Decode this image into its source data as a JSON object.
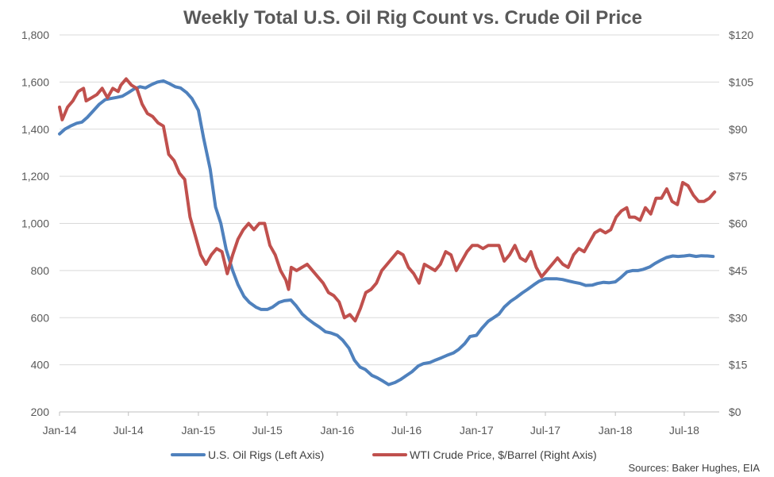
{
  "chart_data": {
    "type": "line",
    "title": "Weekly Total U.S. Oil Rig Count vs. Crude Oil Price",
    "source": "Sources: Baker Hughes, EIA",
    "x_tick_labels": [
      "Jan-14",
      "Jul-14",
      "Jan-15",
      "Jul-15",
      "Jan-16",
      "Jul-16",
      "Jan-17",
      "Jul-17",
      "Jan-18",
      "Jul-18"
    ],
    "x_tick_dates": [
      "2014-01-01",
      "2014-07-01",
      "2015-01-01",
      "2015-07-01",
      "2016-01-01",
      "2016-07-01",
      "2017-01-01",
      "2017-07-01",
      "2018-01-01",
      "2018-07-01"
    ],
    "xlim": [
      "2014-01-01",
      "2018-10-01"
    ],
    "left_axis": {
      "ylim": [
        200,
        1800
      ],
      "ticks": [
        "200",
        "400",
        "600",
        "800",
        "1,000",
        "1,200",
        "1,400",
        "1,600",
        "1,800"
      ],
      "tick_values": [
        200,
        400,
        600,
        800,
        1000,
        1200,
        1400,
        1600,
        1800
      ]
    },
    "right_axis": {
      "ylim": [
        0,
        120
      ],
      "ticks": [
        "$0",
        "$15",
        "$30",
        "$45",
        "$60",
        "$75",
        "$90",
        "$105",
        "$120"
      ],
      "tick_values": [
        0,
        15,
        30,
        45,
        60,
        75,
        90,
        105,
        120
      ]
    },
    "legend_position": "bottom",
    "gridlines": "horizontal",
    "series": [
      {
        "name": "U.S. Oil Rigs (Left Axis)",
        "axis": "left",
        "color": "#4F81BD",
        "points": [
          [
            "2014-01-01",
            1380
          ],
          [
            "2014-01-15",
            1400
          ],
          [
            "2014-02-01",
            1415
          ],
          [
            "2014-02-15",
            1425
          ],
          [
            "2014-03-01",
            1430
          ],
          [
            "2014-03-15",
            1450
          ],
          [
            "2014-04-01",
            1480
          ],
          [
            "2014-04-15",
            1505
          ],
          [
            "2014-05-01",
            1525
          ],
          [
            "2014-05-15",
            1530
          ],
          [
            "2014-06-01",
            1535
          ],
          [
            "2014-06-15",
            1540
          ],
          [
            "2014-07-01",
            1555
          ],
          [
            "2014-07-15",
            1570
          ],
          [
            "2014-08-01",
            1580
          ],
          [
            "2014-08-15",
            1575
          ],
          [
            "2014-09-01",
            1590
          ],
          [
            "2014-09-15",
            1600
          ],
          [
            "2014-10-01",
            1605
          ],
          [
            "2014-10-15",
            1595
          ],
          [
            "2014-11-01",
            1580
          ],
          [
            "2014-11-15",
            1575
          ],
          [
            "2014-12-01",
            1555
          ],
          [
            "2014-12-15",
            1530
          ],
          [
            "2015-01-01",
            1480
          ],
          [
            "2015-01-15",
            1360
          ],
          [
            "2015-02-01",
            1230
          ],
          [
            "2015-02-15",
            1070
          ],
          [
            "2015-03-01",
            1000
          ],
          [
            "2015-03-15",
            890
          ],
          [
            "2015-04-01",
            800
          ],
          [
            "2015-04-15",
            740
          ],
          [
            "2015-05-01",
            690
          ],
          [
            "2015-05-15",
            665
          ],
          [
            "2015-06-01",
            645
          ],
          [
            "2015-06-15",
            635
          ],
          [
            "2015-07-01",
            635
          ],
          [
            "2015-07-15",
            645
          ],
          [
            "2015-08-01",
            665
          ],
          [
            "2015-08-15",
            672
          ],
          [
            "2015-09-01",
            675
          ],
          [
            "2015-09-15",
            650
          ],
          [
            "2015-10-01",
            615
          ],
          [
            "2015-10-15",
            595
          ],
          [
            "2015-11-01",
            575
          ],
          [
            "2015-11-15",
            560
          ],
          [
            "2015-12-01",
            540
          ],
          [
            "2015-12-15",
            535
          ],
          [
            "2016-01-01",
            525
          ],
          [
            "2016-01-15",
            505
          ],
          [
            "2016-02-01",
            470
          ],
          [
            "2016-02-15",
            420
          ],
          [
            "2016-03-01",
            390
          ],
          [
            "2016-03-15",
            380
          ],
          [
            "2016-04-01",
            355
          ],
          [
            "2016-04-15",
            345
          ],
          [
            "2016-05-01",
            330
          ],
          [
            "2016-05-15",
            316
          ],
          [
            "2016-06-01",
            325
          ],
          [
            "2016-06-15",
            337
          ],
          [
            "2016-07-01",
            355
          ],
          [
            "2016-07-15",
            370
          ],
          [
            "2016-08-01",
            395
          ],
          [
            "2016-08-15",
            405
          ],
          [
            "2016-09-01",
            410
          ],
          [
            "2016-09-15",
            420
          ],
          [
            "2016-10-01",
            430
          ],
          [
            "2016-10-15",
            440
          ],
          [
            "2016-11-01",
            450
          ],
          [
            "2016-11-15",
            465
          ],
          [
            "2016-12-01",
            490
          ],
          [
            "2016-12-15",
            520
          ],
          [
            "2017-01-01",
            525
          ],
          [
            "2017-01-15",
            555
          ],
          [
            "2017-02-01",
            585
          ],
          [
            "2017-02-15",
            600
          ],
          [
            "2017-03-01",
            615
          ],
          [
            "2017-03-15",
            645
          ],
          [
            "2017-04-01",
            670
          ],
          [
            "2017-04-15",
            685
          ],
          [
            "2017-05-01",
            705
          ],
          [
            "2017-05-15",
            720
          ],
          [
            "2017-06-01",
            740
          ],
          [
            "2017-06-15",
            755
          ],
          [
            "2017-07-01",
            765
          ],
          [
            "2017-07-15",
            765
          ],
          [
            "2017-08-01",
            765
          ],
          [
            "2017-08-15",
            762
          ],
          [
            "2017-09-01",
            755
          ],
          [
            "2017-09-15",
            750
          ],
          [
            "2017-10-01",
            745
          ],
          [
            "2017-10-15",
            737
          ],
          [
            "2017-11-01",
            738
          ],
          [
            "2017-11-15",
            745
          ],
          [
            "2017-12-01",
            750
          ],
          [
            "2017-12-15",
            748
          ],
          [
            "2018-01-01",
            752
          ],
          [
            "2018-01-15",
            770
          ],
          [
            "2018-02-01",
            795
          ],
          [
            "2018-02-15",
            800
          ],
          [
            "2018-03-01",
            800
          ],
          [
            "2018-03-15",
            805
          ],
          [
            "2018-04-01",
            815
          ],
          [
            "2018-04-15",
            830
          ],
          [
            "2018-05-01",
            844
          ],
          [
            "2018-05-15",
            855
          ],
          [
            "2018-06-01",
            862
          ],
          [
            "2018-06-15",
            860
          ],
          [
            "2018-07-01",
            862
          ],
          [
            "2018-07-15",
            865
          ],
          [
            "2018-08-01",
            860
          ],
          [
            "2018-08-15",
            863
          ],
          [
            "2018-09-01",
            862
          ],
          [
            "2018-09-15",
            860
          ]
        ]
      },
      {
        "name": "WTI Crude Price, $/Barrel (Right Axis)",
        "axis": "right",
        "color": "#C0504D",
        "points": [
          [
            "2014-01-01",
            97
          ],
          [
            "2014-01-08",
            93
          ],
          [
            "2014-01-22",
            97
          ],
          [
            "2014-02-05",
            99
          ],
          [
            "2014-02-19",
            102
          ],
          [
            "2014-03-05",
            103
          ],
          [
            "2014-03-12",
            99
          ],
          [
            "2014-03-26",
            100
          ],
          [
            "2014-04-09",
            101
          ],
          [
            "2014-04-23",
            103
          ],
          [
            "2014-05-07",
            100
          ],
          [
            "2014-05-21",
            103
          ],
          [
            "2014-06-04",
            102
          ],
          [
            "2014-06-11",
            104
          ],
          [
            "2014-06-25",
            106
          ],
          [
            "2014-07-09",
            104
          ],
          [
            "2014-07-23",
            103
          ],
          [
            "2014-08-06",
            98
          ],
          [
            "2014-08-20",
            95
          ],
          [
            "2014-09-03",
            94
          ],
          [
            "2014-09-17",
            92
          ],
          [
            "2014-10-01",
            91
          ],
          [
            "2014-10-15",
            82
          ],
          [
            "2014-10-29",
            80
          ],
          [
            "2014-11-12",
            76
          ],
          [
            "2014-11-26",
            74
          ],
          [
            "2014-12-10",
            62
          ],
          [
            "2014-12-24",
            56
          ],
          [
            "2015-01-07",
            50
          ],
          [
            "2015-01-21",
            47
          ],
          [
            "2015-02-04",
            50
          ],
          [
            "2015-02-18",
            52
          ],
          [
            "2015-03-04",
            51
          ],
          [
            "2015-03-18",
            44
          ],
          [
            "2015-04-01",
            50
          ],
          [
            "2015-04-15",
            55
          ],
          [
            "2015-04-29",
            58
          ],
          [
            "2015-05-13",
            60
          ],
          [
            "2015-05-27",
            58
          ],
          [
            "2015-06-10",
            60
          ],
          [
            "2015-06-24",
            60
          ],
          [
            "2015-07-08",
            53
          ],
          [
            "2015-07-22",
            50
          ],
          [
            "2015-08-05",
            45
          ],
          [
            "2015-08-19",
            42
          ],
          [
            "2015-08-26",
            39
          ],
          [
            "2015-09-02",
            46
          ],
          [
            "2015-09-16",
            45
          ],
          [
            "2015-09-30",
            46
          ],
          [
            "2015-10-14",
            47
          ],
          [
            "2015-10-28",
            45
          ],
          [
            "2015-11-11",
            43
          ],
          [
            "2015-11-25",
            41
          ],
          [
            "2015-12-09",
            38
          ],
          [
            "2015-12-23",
            37
          ],
          [
            "2016-01-06",
            35
          ],
          [
            "2016-01-20",
            30
          ],
          [
            "2016-02-03",
            31
          ],
          [
            "2016-02-17",
            29
          ],
          [
            "2016-03-02",
            33
          ],
          [
            "2016-03-16",
            38
          ],
          [
            "2016-03-30",
            39
          ],
          [
            "2016-04-13",
            41
          ],
          [
            "2016-04-27",
            45
          ],
          [
            "2016-05-11",
            47
          ],
          [
            "2016-05-25",
            49
          ],
          [
            "2016-06-08",
            51
          ],
          [
            "2016-06-22",
            50
          ],
          [
            "2016-07-06",
            46
          ],
          [
            "2016-07-20",
            44
          ],
          [
            "2016-08-03",
            41
          ],
          [
            "2016-08-17",
            47
          ],
          [
            "2016-08-31",
            46
          ],
          [
            "2016-09-14",
            45
          ],
          [
            "2016-09-28",
            47
          ],
          [
            "2016-10-12",
            51
          ],
          [
            "2016-10-26",
            50
          ],
          [
            "2016-11-09",
            45
          ],
          [
            "2016-11-23",
            48
          ],
          [
            "2016-12-07",
            51
          ],
          [
            "2016-12-21",
            53
          ],
          [
            "2017-01-04",
            53
          ],
          [
            "2017-01-18",
            52
          ],
          [
            "2017-02-01",
            53
          ],
          [
            "2017-02-15",
            53
          ],
          [
            "2017-03-01",
            53
          ],
          [
            "2017-03-15",
            48
          ],
          [
            "2017-03-29",
            50
          ],
          [
            "2017-04-12",
            53
          ],
          [
            "2017-04-26",
            49
          ],
          [
            "2017-05-10",
            48
          ],
          [
            "2017-05-24",
            51
          ],
          [
            "2017-06-07",
            46
          ],
          [
            "2017-06-21",
            43
          ],
          [
            "2017-07-05",
            45
          ],
          [
            "2017-07-19",
            47
          ],
          [
            "2017-08-02",
            49
          ],
          [
            "2017-08-16",
            47
          ],
          [
            "2017-08-30",
            46
          ],
          [
            "2017-09-13",
            50
          ],
          [
            "2017-09-27",
            52
          ],
          [
            "2017-10-11",
            51
          ],
          [
            "2017-10-25",
            54
          ],
          [
            "2017-11-08",
            57
          ],
          [
            "2017-11-22",
            58
          ],
          [
            "2017-12-06",
            57
          ],
          [
            "2017-12-20",
            58
          ],
          [
            "2018-01-03",
            62
          ],
          [
            "2018-01-17",
            64
          ],
          [
            "2018-01-31",
            65
          ],
          [
            "2018-02-07",
            62
          ],
          [
            "2018-02-21",
            62
          ],
          [
            "2018-03-07",
            61
          ],
          [
            "2018-03-21",
            65
          ],
          [
            "2018-04-04",
            63
          ],
          [
            "2018-04-18",
            68
          ],
          [
            "2018-05-02",
            68
          ],
          [
            "2018-05-16",
            71
          ],
          [
            "2018-05-30",
            67
          ],
          [
            "2018-06-13",
            66
          ],
          [
            "2018-06-27",
            73
          ],
          [
            "2018-07-11",
            72
          ],
          [
            "2018-07-25",
            69
          ],
          [
            "2018-08-08",
            67
          ],
          [
            "2018-08-22",
            67
          ],
          [
            "2018-09-05",
            68
          ],
          [
            "2018-09-19",
            70
          ]
        ]
      }
    ]
  }
}
